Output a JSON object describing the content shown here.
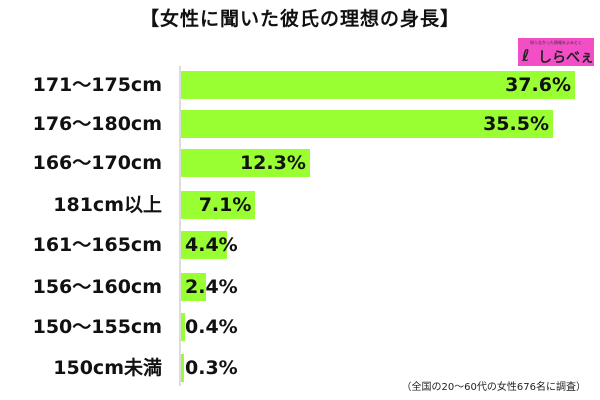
{
  "title": "【女性に聞いた彼氏の理想の身長】",
  "logo": {
    "tagline": "知らなかった情報をよみとく",
    "mark": "ℓ",
    "name": "しらべぇ",
    "color": "#f24fc6"
  },
  "footnote": "（全国の20〜60代の女性676名に調査）",
  "colors": {
    "bar": "#99ff33",
    "axis": "#dcdcdc",
    "text": "#111111"
  },
  "chart_data": {
    "type": "bar",
    "orientation": "horizontal",
    "title": "【女性に聞いた彼氏の理想の身長】",
    "categories": [
      "171〜175cm",
      "176〜180cm",
      "166〜170cm",
      "181cm以上",
      "161〜165cm",
      "156〜160cm",
      "150〜155cm",
      "150cm未満"
    ],
    "values": [
      37.6,
      35.5,
      12.3,
      7.1,
      4.4,
      2.4,
      0.4,
      0.3
    ],
    "value_labels": [
      "37.6%",
      "35.5%",
      "12.3%",
      "7.1%",
      "4.4%",
      "2.4%",
      "0.4%",
      "0.3%"
    ],
    "xlabel": "",
    "ylabel": "",
    "unit": "%",
    "grid": false,
    "legend": null,
    "note": "（全国の20〜60代の女性676名に調査）"
  }
}
